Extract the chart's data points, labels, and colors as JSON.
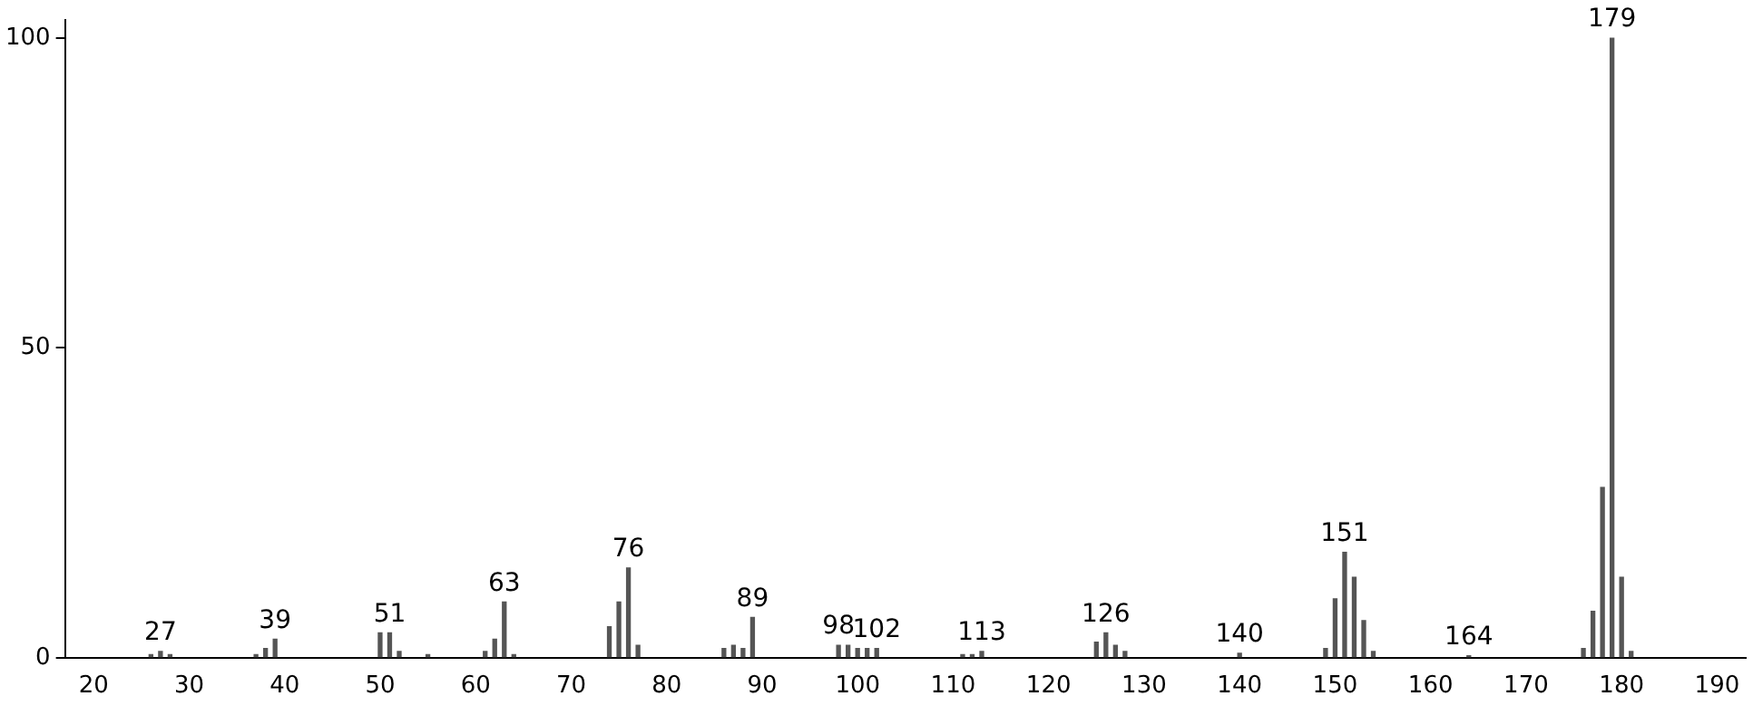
{
  "chart_data": {
    "type": "bar",
    "x": [
      26,
      27,
      28,
      37,
      38,
      39,
      50,
      51,
      52,
      55,
      61,
      62,
      63,
      64,
      74,
      75,
      76,
      77,
      86,
      87,
      88,
      89,
      98,
      99,
      100,
      101,
      102,
      111,
      112,
      113,
      125,
      126,
      127,
      128,
      140,
      149,
      150,
      151,
      152,
      153,
      154,
      164,
      176,
      177,
      178,
      179,
      180,
      181
    ],
    "series": [
      {
        "color": "#555555",
        "values": [
          0.5,
          1,
          0.5,
          0.5,
          1.5,
          3,
          4,
          4,
          1,
          0.5,
          1,
          3,
          9,
          0.5,
          5,
          9,
          14.5,
          2,
          1.5,
          2,
          1.5,
          6.5,
          2,
          2,
          1.5,
          1.5,
          1.5,
          0.5,
          0.5,
          1,
          2.5,
          4,
          2,
          1,
          0.7,
          1.5,
          9.5,
          17,
          13,
          6,
          1,
          0.3,
          1.5,
          7.5,
          27.5,
          100,
          13,
          1
        ]
      }
    ],
    "xlim": [
      17,
      193
    ],
    "xticks": [
      20,
      30,
      40,
      50,
      60,
      70,
      80,
      90,
      100,
      110,
      120,
      130,
      140,
      150,
      160,
      170,
      180,
      190
    ],
    "ylim": [
      0,
      103
    ],
    "yticks": [
      0,
      50,
      100
    ],
    "grid": false,
    "legend": false,
    "annotations": [
      {
        "text": "27",
        "x": 27,
        "y": 1
      },
      {
        "text": "39",
        "x": 39,
        "y": 3
      },
      {
        "text": "51",
        "x": 51,
        "y": 4
      },
      {
        "text": "63",
        "x": 63,
        "y": 9
      },
      {
        "text": "76",
        "x": 76,
        "y": 14.5
      },
      {
        "text": "89",
        "x": 89,
        "y": 6.5
      },
      {
        "text": "98",
        "x": 98,
        "y": 2
      },
      {
        "text": "102",
        "x": 102,
        "y": 1.5
      },
      {
        "text": "113",
        "x": 113,
        "y": 1
      },
      {
        "text": "126",
        "x": 126,
        "y": 4
      },
      {
        "text": "140",
        "x": 140,
        "y": 0.7
      },
      {
        "text": "151",
        "x": 151,
        "y": 17
      },
      {
        "text": "164",
        "x": 164,
        "y": 0.3
      },
      {
        "text": "179",
        "x": 179,
        "y": 100
      }
    ]
  }
}
